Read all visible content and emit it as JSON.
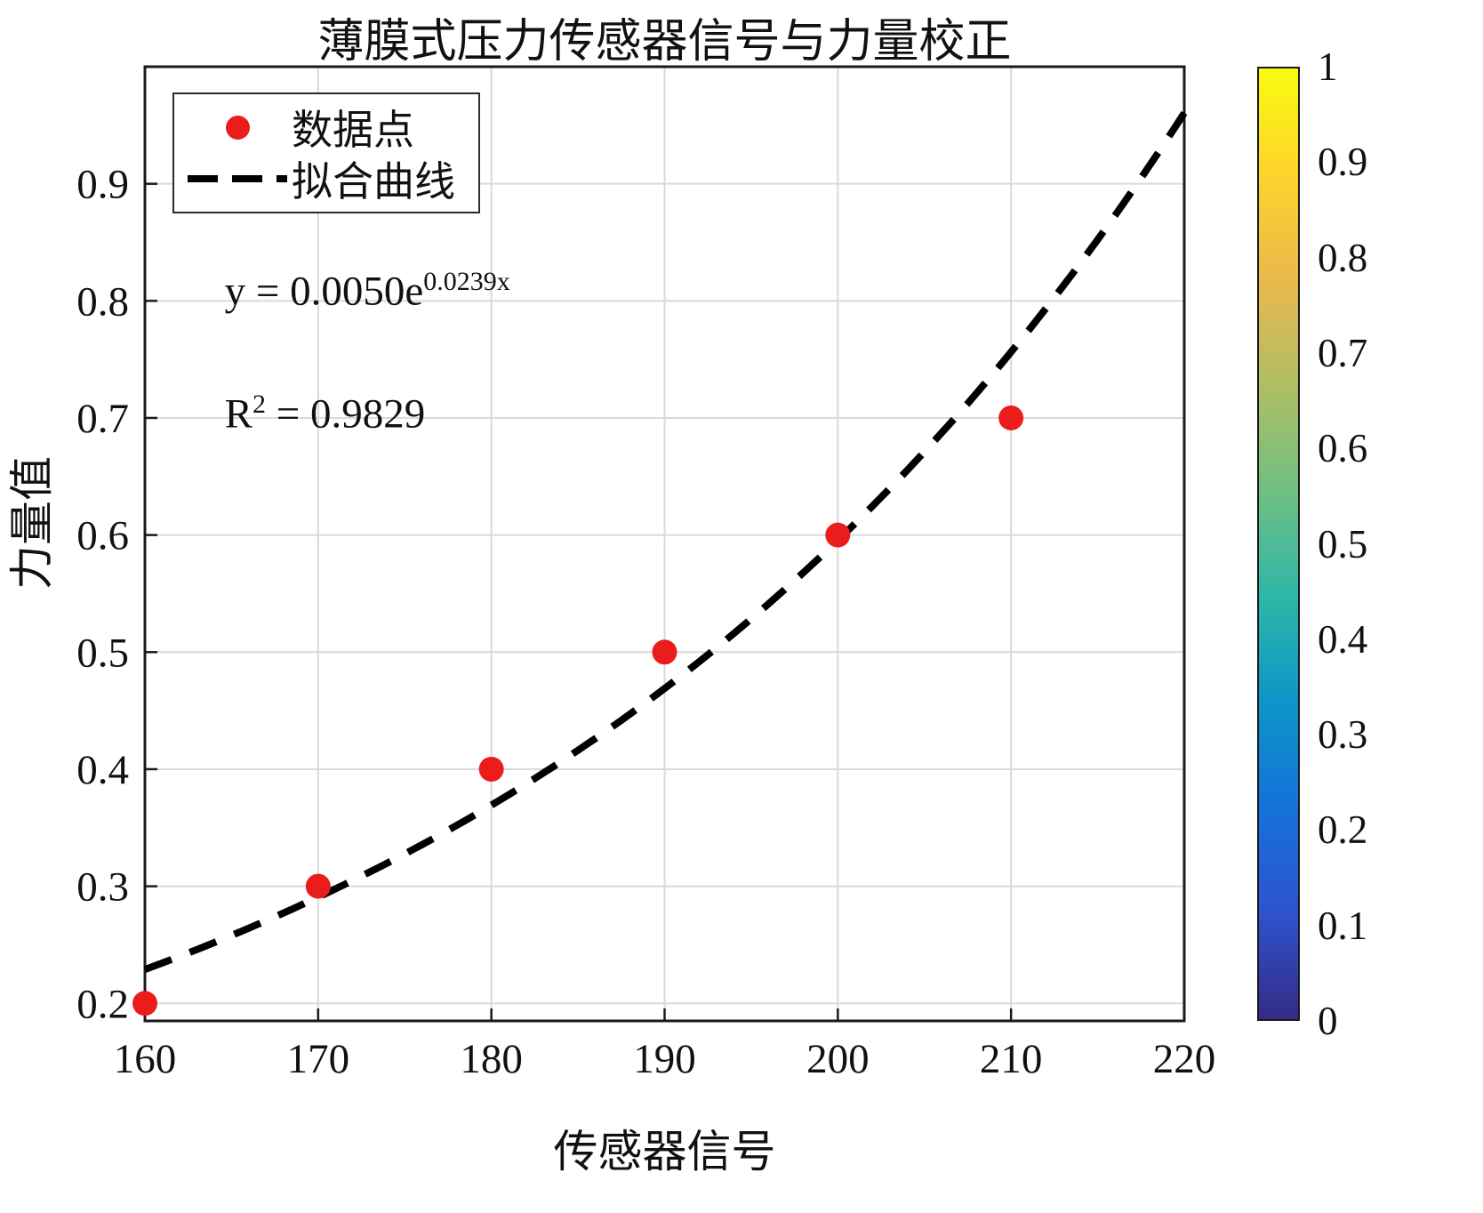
{
  "chart_data": {
    "type": "scatter",
    "title": "薄膜式压力传感器信号与力量校正",
    "xlabel": "传感器信号",
    "ylabel": "力量值",
    "xlim": [
      160,
      220
    ],
    "ylim": [
      0.185,
      1.0
    ],
    "xticks": [
      160,
      170,
      180,
      190,
      200,
      210,
      220
    ],
    "yticks": [
      0.2,
      0.3,
      0.4,
      0.5,
      0.6,
      0.7,
      0.8,
      0.9
    ],
    "grid": true,
    "legend_position": "top-left",
    "colors": {
      "grid": "#d9d9d9",
      "axis": "#1a1a1a",
      "background": "#ffffff"
    },
    "series": [
      {
        "name": "数据点",
        "type": "scatter",
        "color": "#ea1c1c",
        "x": [
          160,
          170,
          180,
          190,
          200,
          210
        ],
        "y": [
          0.2,
          0.3,
          0.4,
          0.5,
          0.6,
          0.7
        ]
      },
      {
        "name": "拟合曲线",
        "type": "line",
        "style": "dashed",
        "color": "#000000",
        "equation": "y = 0.0050*exp(0.0239*x)",
        "a": 0.005,
        "b": 0.0239,
        "x_range": [
          160,
          220
        ]
      }
    ],
    "annotations": [
      {
        "name": "annotation-equation",
        "base": "y = 0.0050e",
        "sup": "0.0239x",
        "tail": "",
        "x": 164.6,
        "y": 0.805
      },
      {
        "name": "annotation-r-squared",
        "base": "R",
        "sup": "2",
        "tail": " = 0.9829",
        "x": 164.6,
        "y": 0.7
      }
    ],
    "colorbar": {
      "min": 0,
      "max": 1,
      "ticks": [
        0,
        0.1,
        0.2,
        0.3,
        0.4,
        0.5,
        0.6,
        0.7,
        0.8,
        0.9,
        1
      ],
      "colormap": "parula",
      "colors": [
        "#352a87",
        "#2f53cd",
        "#1472d9",
        "#0d95c8",
        "#2cb7a7",
        "#71bf81",
        "#b0bd64",
        "#e9b94c",
        "#fdd32c",
        "#f9fb0e"
      ]
    }
  }
}
